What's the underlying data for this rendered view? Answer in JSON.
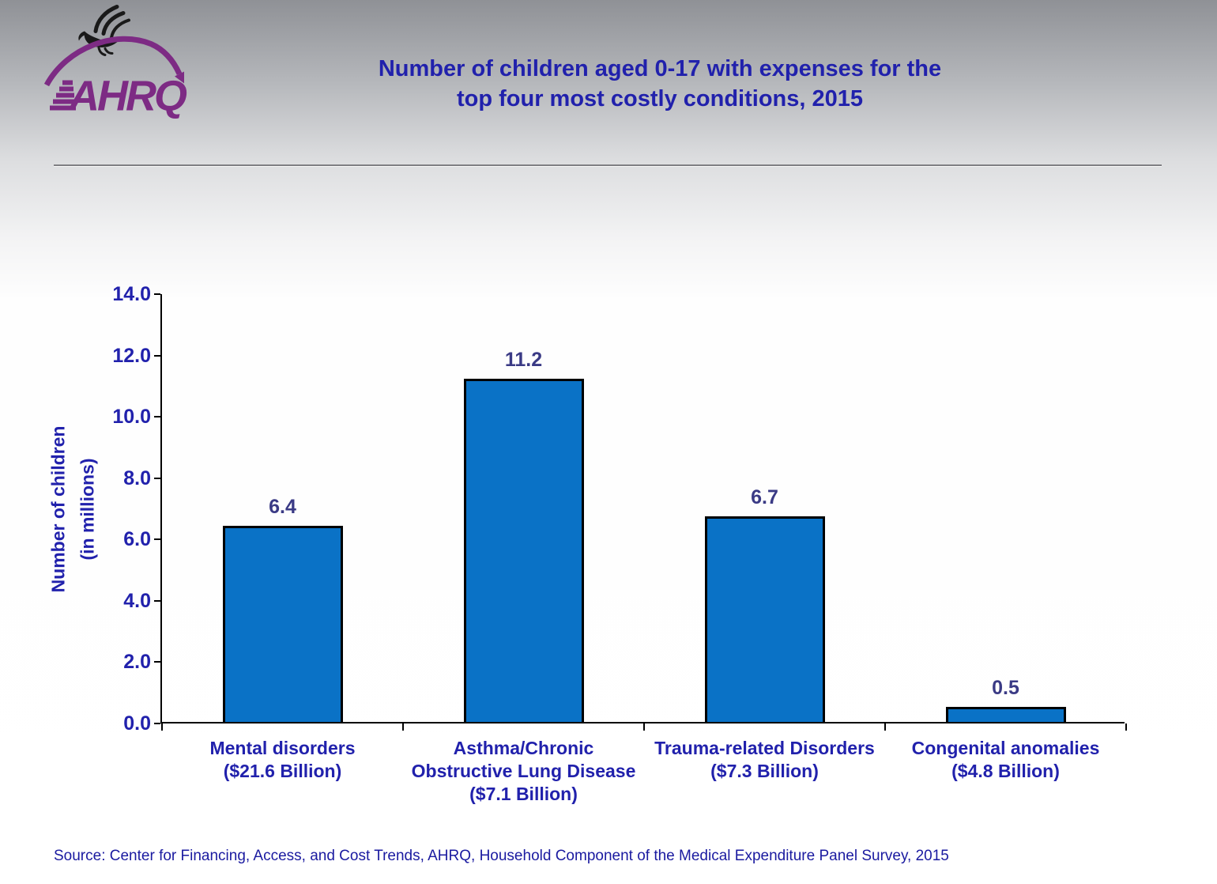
{
  "header": {
    "title_lines": [
      "Number of children aged 0-17 with expenses for the",
      "top four most costly conditions, 2015"
    ]
  },
  "logo": {
    "wordmark": "AHRQ",
    "eagle_icon": "hhs-eagle-icon",
    "purple": "#7D2B84",
    "eagle_black": "#1A1A1A"
  },
  "source_note": "Source: Center for Financing, Access, and Cost Trends, AHRQ, Household Component of the Medical Expenditure Panel Survey, 2015",
  "colors": {
    "heading_text": "#2121AC",
    "value_label_text": "#3A3A85",
    "source_text": "#1A1AA0",
    "divider_gray": "#7F7F83",
    "background_top_gray": "#8F9196"
  },
  "chart_data": {
    "type": "bar",
    "title": "Number of children aged 0-17 with expenses for the top four most costly conditions, 2015",
    "categories": [
      "Mental disorders ($21.6 Billion)",
      "Asthma/Chronic Obstructive Lung Disease ($7.1 Billion)",
      "Trauma-related Disorders ($7.3 Billion)",
      "Congenital anomalies ($4.8 Billion)"
    ],
    "category_label_lines": [
      [
        "Mental disorders",
        "($21.6 Billion)"
      ],
      [
        "Asthma/Chronic",
        "Obstructive Lung Disease",
        "($7.1 Billion)"
      ],
      [
        "Trauma-related Disorders",
        "($7.3 Billion)"
      ],
      [
        "Congenital anomalies",
        "($4.8 Billion)"
      ]
    ],
    "values": [
      6.4,
      11.2,
      6.7,
      0.5
    ],
    "value_labels": [
      "6.4",
      "11.2",
      "6.7",
      "0.5"
    ],
    "ylabel_lines": [
      "Number of children",
      "(in millions)"
    ],
    "xlabel": "",
    "ylim": [
      0,
      14
    ],
    "ytick_labels": [
      "0.0",
      "2.0",
      "4.0",
      "6.0",
      "8.0",
      "10.0",
      "12.0",
      "14.0"
    ],
    "grid": false,
    "legend": false,
    "bar_color": "#0A72C6",
    "bar_border_color": "#000000"
  }
}
